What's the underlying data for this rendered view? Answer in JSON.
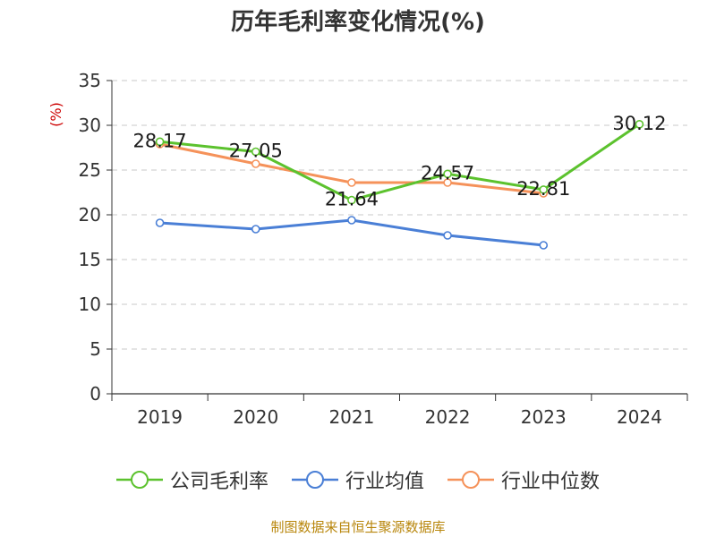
{
  "chart_data": {
    "type": "line",
    "title": "历年毛利率变化情况(%)",
    "ylabel": "(%)",
    "xlabel": "",
    "categories": [
      "2019",
      "2020",
      "2021",
      "2022",
      "2023",
      "2024"
    ],
    "ylim": [
      0,
      35
    ],
    "yticks": [
      "0",
      "5",
      "10",
      "15",
      "20",
      "25",
      "30",
      "35"
    ],
    "grid": true,
    "legend_position": "bottom",
    "series": [
      {
        "name": "公司毛利率",
        "color": "#5cc22e",
        "values": [
          28.17,
          27.05,
          21.64,
          24.57,
          22.81,
          30.12
        ],
        "labels": [
          "28.17",
          "27.05",
          "21.64",
          "24.57",
          "22.81",
          "30.12"
        ]
      },
      {
        "name": "行业均值",
        "color": "#4a7fd6",
        "values": [
          19.1,
          18.4,
          19.4,
          17.7,
          16.6,
          null
        ]
      },
      {
        "name": "行业中位数",
        "color": "#f5925a",
        "values": [
          27.9,
          25.7,
          23.6,
          23.6,
          22.4,
          null
        ]
      }
    ]
  },
  "footer": {
    "source": "制图数据来自恒生聚源数据库"
  }
}
